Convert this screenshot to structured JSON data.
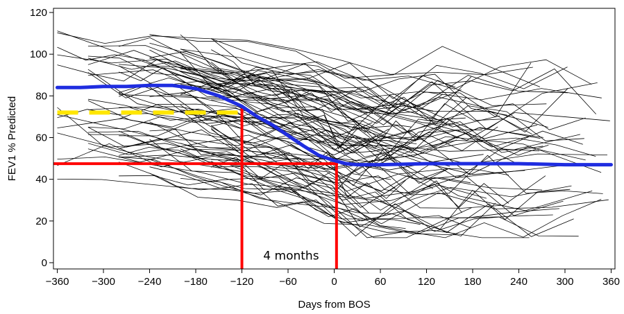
{
  "chart_data": {
    "type": "line",
    "xlabel": "Days from BOS",
    "ylabel": "FEV1 % Predicted",
    "xlim": [
      -365,
      365
    ],
    "ylim": [
      -3,
      122
    ],
    "x_ticks": [
      -360,
      -300,
      -240,
      -180,
      -120,
      -60,
      0,
      60,
      120,
      180,
      240,
      300,
      360
    ],
    "y_ticks": [
      0,
      20,
      40,
      60,
      80,
      100,
      120
    ],
    "grid": false,
    "colors": {
      "individual": "#000000",
      "mean": "#1f2de0",
      "baseline": "#ffe600",
      "reference": "#ff0000"
    },
    "mean_curve": {
      "x": [
        -360,
        -330,
        -300,
        -270,
        -240,
        -210,
        -180,
        -150,
        -120,
        -100,
        -80,
        -60,
        -40,
        -20,
        0,
        15,
        30,
        60,
        120,
        180,
        240,
        300,
        360
      ],
      "y": [
        84,
        84,
        84.5,
        84.5,
        85,
        85,
        83.5,
        80,
        75,
        70,
        66,
        61,
        56,
        51.5,
        49,
        47.5,
        47,
        47,
        47.5,
        47.5,
        47.5,
        47,
        47
      ]
    },
    "baseline": {
      "x": [
        -360,
        -120
      ],
      "y": 72
    },
    "reference_lines": {
      "hline": {
        "y": 47.5,
        "x": [
          -365,
          5
        ]
      },
      "vlines": [
        {
          "x": -120,
          "y": [
            -3,
            74
          ]
        },
        {
          "x": 3,
          "y": [
            -3,
            48
          ]
        }
      ]
    },
    "annotation": {
      "text": "4 months",
      "x": -56,
      "y": 1.5
    }
  }
}
